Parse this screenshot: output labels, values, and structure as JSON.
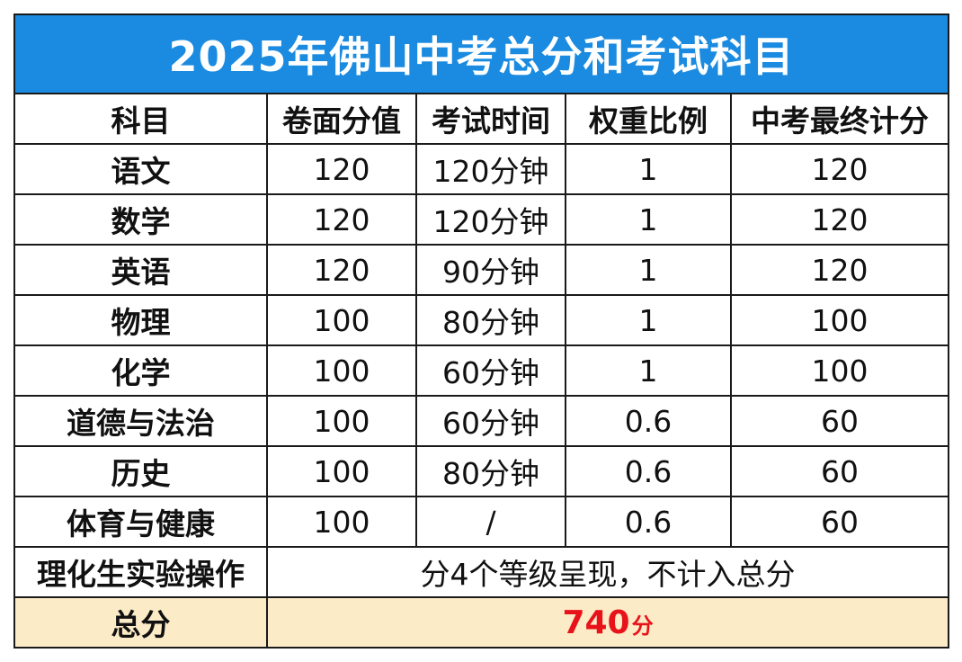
{
  "title": "2025年佛山中考总分和考试科目",
  "headers": [
    "科目",
    "卷面分值",
    "考试时间",
    "权重比例",
    "中考最终计分"
  ],
  "rows": [
    [
      "语文",
      "120",
      "120分钟",
      "1",
      "120"
    ],
    [
      "数学",
      "120",
      "120分钟",
      "1",
      "120"
    ],
    [
      "英语",
      "120",
      "90分钟",
      "1",
      "120"
    ],
    [
      "物理",
      "100",
      "80分钟",
      "1",
      "100"
    ],
    [
      "化学",
      "100",
      "60分钟",
      "1",
      "100"
    ],
    [
      "道德与法治",
      "100",
      "60分钟",
      "0.6",
      "60"
    ],
    [
      "历史",
      "100",
      "80分钟",
      "0.6",
      "60"
    ],
    [
      "体育与健康",
      "100",
      "/",
      "0.6",
      "60"
    ]
  ],
  "note_row": {
    "subject": "理化生实验操作",
    "text": "分4个等级呈现，不计入总分"
  },
  "total_row": {
    "label": "总分",
    "value": "740",
    "unit": "分"
  },
  "colors": {
    "title_bg": "#1a8be0",
    "title_text": "#ffffff",
    "total_bg": "#fcebc7",
    "total_value": "#e8131a"
  }
}
